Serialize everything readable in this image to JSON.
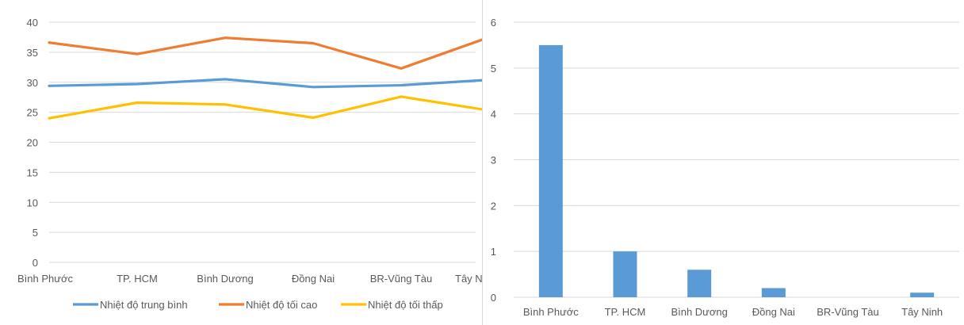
{
  "chart_data": [
    {
      "type": "line",
      "categories": [
        "Bình Phước",
        "TP. HCM",
        "Bình Dương",
        "Đồng Nai",
        "BR-Vũng Tàu",
        "Tây Ninh"
      ],
      "category_label_visible": [
        "Bình Phước",
        "TP. HCM",
        "Bình Dương",
        "Đồng Nai",
        "BR-Vũng Tàu",
        "Tây N"
      ],
      "ylim": [
        0,
        40
      ],
      "yticks": [
        0,
        5,
        10,
        15,
        20,
        25,
        30,
        35,
        40
      ],
      "grid": true,
      "legend_position": "bottom",
      "series": [
        {
          "name": "Nhiệt độ trung bình",
          "color": "#5b9bd5",
          "values": [
            29.4,
            29.7,
            30.5,
            29.2,
            29.5,
            30.4
          ]
        },
        {
          "name": "Nhiệt độ tối cao",
          "color": "#ed7d31",
          "values": [
            36.6,
            34.7,
            37.4,
            36.5,
            32.3,
            37.5
          ]
        },
        {
          "name": "Nhiệt độ tối thấp",
          "color": "#ffc000",
          "values": [
            24.0,
            26.6,
            26.3,
            24.1,
            27.6,
            25.3
          ]
        }
      ]
    },
    {
      "type": "bar",
      "categories": [
        "Bình Phước",
        "TP. HCM",
        "Bình Dương",
        "Đồng Nai",
        "BR-Vũng Tàu",
        "Tây Ninh"
      ],
      "values": [
        5.5,
        1.0,
        0.6,
        0.2,
        0.0,
        0.1
      ],
      "ylim": [
        0,
        6
      ],
      "yticks": [
        0,
        1,
        2,
        3,
        4,
        5,
        6
      ],
      "grid": true,
      "color": "#5b9bd5"
    }
  ]
}
